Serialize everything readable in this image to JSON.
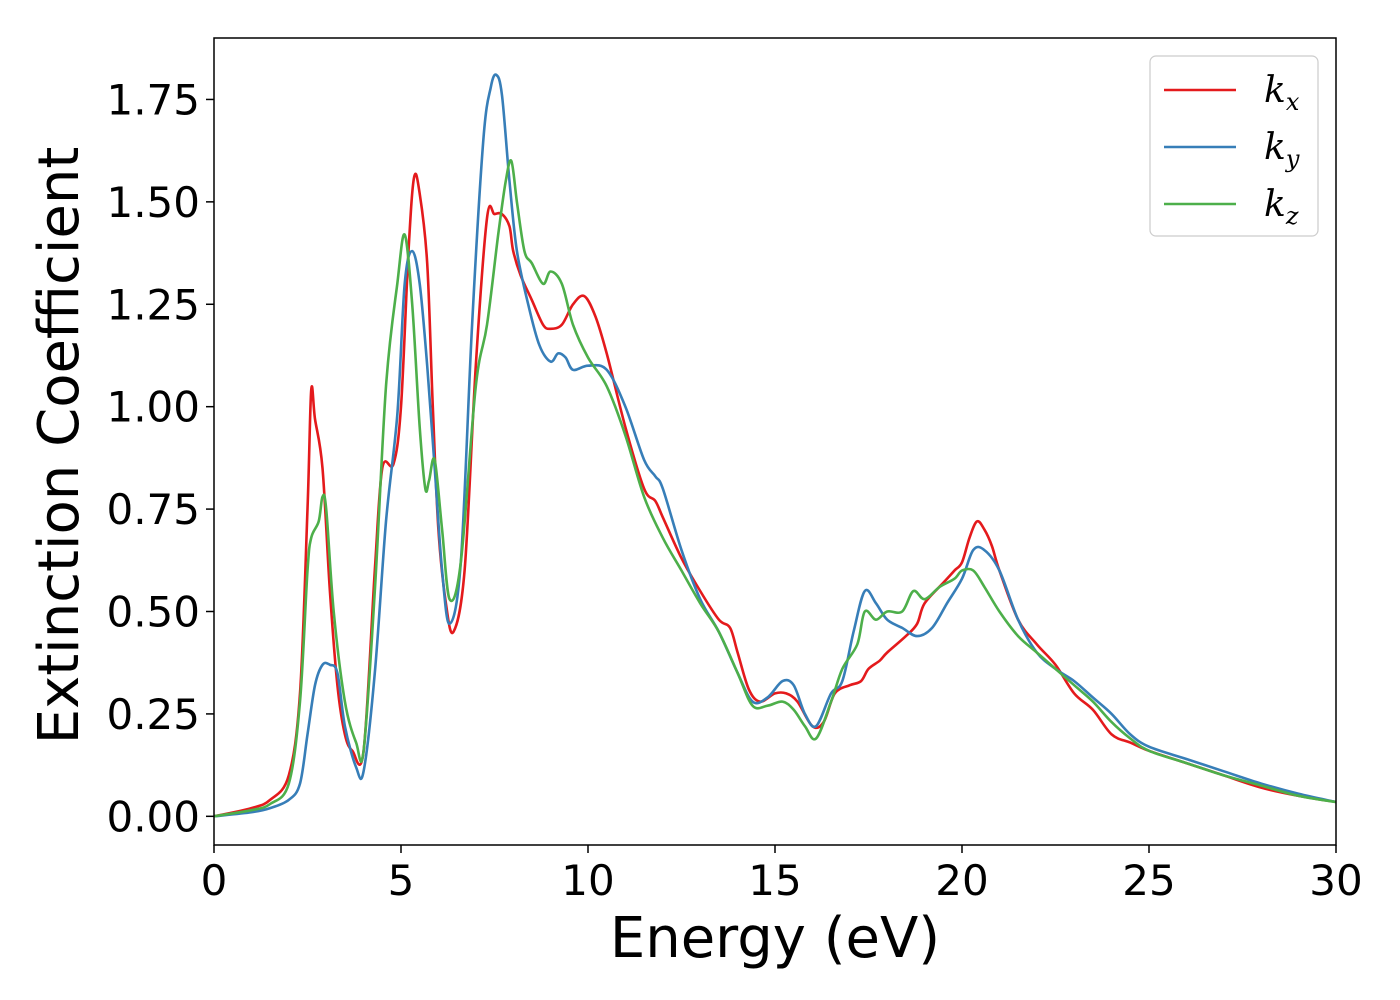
{
  "chart_data": {
    "type": "line",
    "title": "",
    "xlabel": "Energy (eV)",
    "ylabel": "Extinction Coefficient",
    "xlim": [
      0,
      30
    ],
    "ylim": [
      -0.07,
      1.9
    ],
    "x_ticks": [
      0,
      5,
      10,
      15,
      20,
      25,
      30
    ],
    "x_tick_labels": [
      "0",
      "5",
      "10",
      "15",
      "20",
      "25",
      "30"
    ],
    "y_ticks": [
      0.0,
      0.25,
      0.5,
      0.75,
      1.0,
      1.25,
      1.5,
      1.75
    ],
    "y_tick_labels": [
      "0.00",
      "0.25",
      "0.50",
      "0.75",
      "1.00",
      "1.25",
      "1.50",
      "1.75"
    ],
    "grid": false,
    "legend_placement": "top-right",
    "series": [
      {
        "name": "k_x",
        "label_base": "k",
        "label_sub": "x",
        "color": "#e41a1c",
        "x": [
          0,
          1,
          1.5,
          2,
          2.3,
          2.5,
          2.6,
          2.7,
          2.9,
          3.1,
          3.3,
          3.5,
          3.7,
          4.0,
          4.3,
          4.5,
          4.8,
          5.0,
          5.2,
          5.35,
          5.5,
          5.7,
          5.85,
          6.0,
          6.2,
          6.4,
          6.7,
          7.0,
          7.3,
          7.5,
          7.7,
          7.9,
          8.0,
          8.2,
          8.5,
          8.8,
          9.0,
          9.3,
          9.6,
          9.9,
          10.2,
          10.5,
          11.0,
          11.5,
          11.8,
          12.0,
          12.5,
          13.0,
          13.5,
          13.8,
          14.0,
          14.3,
          14.6,
          15.0,
          15.3,
          15.6,
          16.0,
          16.3,
          16.6,
          17.0,
          17.3,
          17.5,
          17.8,
          18.0,
          18.5,
          18.8,
          19.0,
          19.5,
          19.8,
          20.0,
          20.2,
          20.4,
          20.6,
          20.8,
          21.0,
          21.5,
          22.0,
          22.5,
          23.0,
          23.5,
          24.0,
          24.5,
          25.0,
          26.0,
          27.0,
          28.0,
          29.0,
          30.0
        ],
        "y": [
          0.0,
          0.02,
          0.04,
          0.1,
          0.3,
          0.75,
          1.04,
          0.97,
          0.85,
          0.55,
          0.32,
          0.2,
          0.16,
          0.16,
          0.6,
          0.85,
          0.86,
          1.0,
          1.38,
          1.56,
          1.52,
          1.35,
          1.0,
          0.7,
          0.52,
          0.45,
          0.6,
          1.1,
          1.46,
          1.47,
          1.47,
          1.44,
          1.38,
          1.32,
          1.26,
          1.2,
          1.19,
          1.2,
          1.25,
          1.27,
          1.22,
          1.13,
          0.95,
          0.8,
          0.77,
          0.73,
          0.63,
          0.55,
          0.48,
          0.46,
          0.4,
          0.31,
          0.28,
          0.3,
          0.3,
          0.28,
          0.22,
          0.23,
          0.3,
          0.32,
          0.33,
          0.36,
          0.38,
          0.4,
          0.44,
          0.47,
          0.52,
          0.57,
          0.6,
          0.62,
          0.68,
          0.72,
          0.7,
          0.66,
          0.6,
          0.48,
          0.42,
          0.37,
          0.3,
          0.26,
          0.2,
          0.18,
          0.16,
          0.13,
          0.1,
          0.07,
          0.05,
          0.035
        ]
      },
      {
        "name": "k_y",
        "label_base": "k",
        "label_sub": "y",
        "color": "#377eb8",
        "x": [
          0,
          1,
          1.5,
          2,
          2.3,
          2.5,
          2.7,
          2.9,
          3.1,
          3.3,
          3.5,
          3.8,
          4.0,
          4.3,
          4.6,
          4.9,
          5.1,
          5.3,
          5.5,
          5.7,
          5.9,
          6.1,
          6.3,
          6.6,
          6.9,
          7.2,
          7.4,
          7.55,
          7.7,
          7.9,
          8.1,
          8.4,
          8.7,
          9.0,
          9.2,
          9.4,
          9.6,
          10.0,
          10.5,
          11.0,
          11.5,
          11.8,
          12.0,
          12.5,
          13.0,
          13.5,
          14.0,
          14.4,
          14.8,
          15.2,
          15.5,
          15.8,
          16.1,
          16.5,
          16.8,
          17.1,
          17.4,
          17.7,
          18.0,
          18.4,
          18.8,
          19.2,
          19.6,
          20.0,
          20.3,
          20.6,
          21.0,
          21.5,
          22.0,
          22.5,
          23.0,
          23.5,
          24.0,
          24.5,
          25.0,
          26.0,
          27.0,
          28.0,
          29.0,
          30.0
        ],
        "y": [
          0.0,
          0.01,
          0.02,
          0.04,
          0.08,
          0.2,
          0.32,
          0.37,
          0.37,
          0.35,
          0.22,
          0.12,
          0.11,
          0.35,
          0.72,
          0.98,
          1.3,
          1.38,
          1.3,
          1.1,
          0.85,
          0.6,
          0.47,
          0.62,
          1.2,
          1.65,
          1.78,
          1.81,
          1.76,
          1.55,
          1.38,
          1.25,
          1.15,
          1.11,
          1.13,
          1.12,
          1.09,
          1.1,
          1.09,
          1.0,
          0.87,
          0.83,
          0.8,
          0.65,
          0.53,
          0.45,
          0.35,
          0.28,
          0.29,
          0.33,
          0.32,
          0.25,
          0.22,
          0.3,
          0.33,
          0.45,
          0.55,
          0.52,
          0.48,
          0.46,
          0.44,
          0.46,
          0.52,
          0.58,
          0.65,
          0.65,
          0.6,
          0.48,
          0.4,
          0.36,
          0.33,
          0.29,
          0.25,
          0.2,
          0.17,
          0.14,
          0.11,
          0.08,
          0.055,
          0.035
        ]
      },
      {
        "name": "k_z",
        "label_base": "k",
        "label_sub": "z",
        "color": "#4daf4a",
        "x": [
          0,
          1,
          1.5,
          2,
          2.3,
          2.5,
          2.6,
          2.8,
          2.9,
          3.0,
          3.2,
          3.5,
          3.8,
          4.0,
          4.3,
          4.6,
          4.9,
          5.1,
          5.3,
          5.5,
          5.65,
          5.75,
          5.9,
          6.1,
          6.3,
          6.6,
          7.0,
          7.3,
          7.6,
          7.8,
          7.95,
          8.1,
          8.3,
          8.5,
          8.8,
          9.0,
          9.3,
          9.6,
          10.0,
          10.5,
          11.0,
          11.5,
          12.0,
          12.5,
          13.0,
          13.5,
          14.0,
          14.4,
          14.8,
          15.2,
          15.5,
          15.8,
          16.1,
          16.5,
          16.8,
          17.2,
          17.4,
          17.7,
          18.0,
          18.4,
          18.7,
          19.0,
          19.4,
          19.8,
          20.0,
          20.3,
          20.6,
          21.0,
          21.5,
          22.0,
          22.5,
          23.0,
          23.5,
          24.0,
          24.5,
          25.0,
          26.0,
          27.0,
          28.0,
          29.0,
          30.0
        ],
        "y": [
          0.0,
          0.015,
          0.03,
          0.08,
          0.28,
          0.6,
          0.68,
          0.72,
          0.78,
          0.75,
          0.5,
          0.28,
          0.18,
          0.16,
          0.55,
          1.05,
          1.3,
          1.42,
          1.25,
          0.95,
          0.8,
          0.82,
          0.87,
          0.7,
          0.53,
          0.62,
          1.05,
          1.2,
          1.42,
          1.55,
          1.6,
          1.5,
          1.38,
          1.35,
          1.3,
          1.33,
          1.3,
          1.2,
          1.12,
          1.05,
          0.93,
          0.78,
          0.68,
          0.6,
          0.52,
          0.45,
          0.35,
          0.27,
          0.27,
          0.28,
          0.26,
          0.22,
          0.19,
          0.28,
          0.36,
          0.42,
          0.5,
          0.48,
          0.5,
          0.5,
          0.55,
          0.53,
          0.56,
          0.58,
          0.6,
          0.6,
          0.56,
          0.5,
          0.44,
          0.4,
          0.36,
          0.32,
          0.28,
          0.23,
          0.19,
          0.16,
          0.13,
          0.1,
          0.075,
          0.05,
          0.035
        ]
      }
    ]
  }
}
